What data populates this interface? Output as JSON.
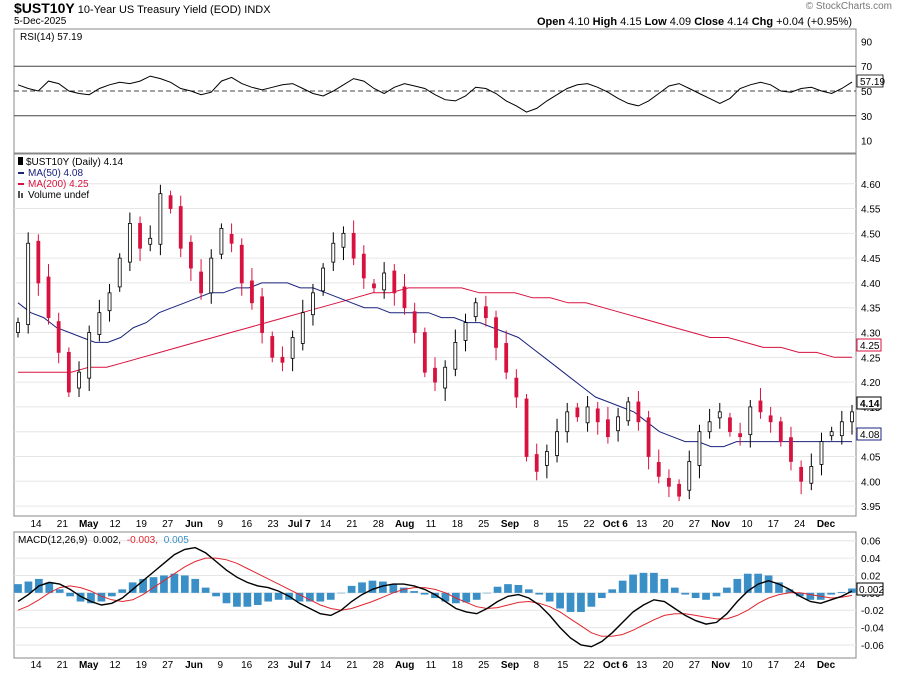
{
  "header": {
    "symbol": "$UST10Y",
    "description": "10-Year US Treasury Yield (EOD)",
    "exchange": "INDX",
    "date": "5-Dec-2025",
    "watermark": "© StockCharts.com",
    "open_label": "Open",
    "open": "4.10",
    "high_label": "High",
    "high": "4.15",
    "low_label": "Low",
    "low": "4.09",
    "close_label": "Close",
    "close": "4.14",
    "chg_label": "Chg",
    "chg": "+0.04 (+0.95%)"
  },
  "rsi_panel": {
    "legend": "RSI(14) 57.19",
    "value_label": "57.19"
  },
  "price_panel": {
    "legend_main": "$UST10Y (Daily) 4.14",
    "legend_ma50": "MA(50) 4.08",
    "legend_ma200": "MA(200) 4.25",
    "legend_volume": "Volume undef",
    "last_close_label": "4.14",
    "ma50_label": "4.08",
    "ma200_label": "4.25"
  },
  "macd_panel": {
    "legend_prefix": "MACD(12,26,9)",
    "legend_macd": "0.002,",
    "legend_signal": "-0.003,",
    "legend_hist": "0.005",
    "value_label": "0.002"
  },
  "colors": {
    "up": "#000000",
    "down": "#d8123f",
    "ma50": "#1a237e",
    "ma200": "#d8123f",
    "macd": "#000000",
    "signal": "#e0262f",
    "histogram": "#3a8fc7",
    "rsi": "#000000"
  },
  "x_axis_labels": [
    {
      "text": "14",
      "bold": false
    },
    {
      "text": "21",
      "bold": false
    },
    {
      "text": "May",
      "bold": true
    },
    {
      "text": "12",
      "bold": false
    },
    {
      "text": "19",
      "bold": false
    },
    {
      "text": "27",
      "bold": false
    },
    {
      "text": "Jun",
      "bold": true
    },
    {
      "text": "9",
      "bold": false
    },
    {
      "text": "16",
      "bold": false
    },
    {
      "text": "23",
      "bold": false
    },
    {
      "text": "Jul 7",
      "bold": true
    },
    {
      "text": "14",
      "bold": false
    },
    {
      "text": "21",
      "bold": false
    },
    {
      "text": "28",
      "bold": false
    },
    {
      "text": "Aug",
      "bold": true
    },
    {
      "text": "11",
      "bold": false
    },
    {
      "text": "18",
      "bold": false
    },
    {
      "text": "25",
      "bold": false
    },
    {
      "text": "Sep",
      "bold": true
    },
    {
      "text": "8",
      "bold": false
    },
    {
      "text": "15",
      "bold": false
    },
    {
      "text": "22",
      "bold": false
    },
    {
      "text": "Oct 6",
      "bold": true
    },
    {
      "text": "13",
      "bold": false
    },
    {
      "text": "20",
      "bold": false
    },
    {
      "text": "27",
      "bold": false
    },
    {
      "text": "Nov",
      "bold": true
    },
    {
      "text": "10",
      "bold": false
    },
    {
      "text": "17",
      "bold": false
    },
    {
      "text": "24",
      "bold": false
    },
    {
      "text": "Dec",
      "bold": true
    }
  ],
  "chart_data": [
    {
      "type": "line",
      "title": "RSI(14)",
      "y_ticks": [
        10,
        30,
        50,
        70,
        90
      ],
      "ylim": [
        0,
        100
      ],
      "reference_lines": [
        30,
        50,
        70
      ],
      "series": [
        {
          "name": "RSI(14)",
          "values": [
            55,
            52,
            50,
            58,
            56,
            50,
            48,
            47,
            52,
            55,
            57,
            56,
            58,
            62,
            60,
            57,
            52,
            50,
            47,
            49,
            58,
            61,
            56,
            53,
            51,
            53,
            55,
            56,
            52,
            48,
            46,
            50,
            55,
            60,
            58,
            52,
            48,
            53,
            56,
            54,
            52,
            47,
            43,
            42,
            46,
            53,
            52,
            48,
            42,
            38,
            33,
            36,
            42,
            47,
            52,
            55,
            56,
            53,
            49,
            44,
            40,
            38,
            42,
            48,
            54,
            56,
            52,
            48,
            44,
            40,
            44,
            52,
            55,
            57,
            55,
            50,
            49,
            52,
            53,
            50,
            48,
            52,
            57.19
          ]
        }
      ]
    },
    {
      "type": "candlestick",
      "title": "$UST10Y (Daily) 4.14",
      "y_ticks": [
        3.95,
        4.0,
        4.05,
        4.1,
        4.15,
        4.2,
        4.25,
        4.3,
        4.35,
        4.4,
        4.45,
        4.5,
        4.55,
        4.6
      ],
      "ylim": [
        3.93,
        4.66
      ],
      "closes": [
        4.32,
        4.48,
        4.4,
        4.33,
        4.26,
        4.18,
        4.22,
        4.3,
        4.34,
        4.38,
        4.45,
        4.52,
        4.47,
        4.49,
        4.58,
        4.55,
        4.47,
        4.43,
        4.38,
        4.45,
        4.51,
        4.48,
        4.4,
        4.36,
        4.3,
        4.25,
        4.24,
        4.29,
        4.34,
        4.38,
        4.43,
        4.48,
        4.5,
        4.45,
        4.41,
        4.39,
        4.42,
        4.38,
        4.35,
        4.3,
        4.22,
        4.2,
        4.23,
        4.28,
        4.32,
        4.36,
        4.33,
        4.27,
        4.22,
        4.17,
        4.05,
        4.02,
        4.06,
        4.1,
        4.14,
        4.13,
        4.15,
        4.12,
        4.09,
        4.13,
        4.16,
        4.12,
        4.05,
        4.01,
        3.99,
        3.97,
        4.04,
        4.1,
        4.12,
        4.14,
        4.1,
        4.09,
        4.15,
        4.14,
        4.12,
        4.08,
        4.04,
        4.0,
        4.03,
        4.08,
        4.1,
        4.12,
        4.14
      ],
      "series": [
        {
          "name": "MA(50)",
          "last": 4.08,
          "values": [
            4.36,
            4.34,
            4.33,
            4.31,
            4.3,
            4.29,
            4.28,
            4.28,
            4.29,
            4.31,
            4.32,
            4.34,
            4.35,
            4.36,
            4.37,
            4.38,
            4.38,
            4.39,
            4.39,
            4.4,
            4.4,
            4.4,
            4.39,
            4.39,
            4.38,
            4.37,
            4.36,
            4.35,
            4.35,
            4.34,
            4.34,
            4.34,
            4.34,
            4.33,
            4.33,
            4.32,
            4.32,
            4.31,
            4.3,
            4.29,
            4.27,
            4.25,
            4.23,
            4.21,
            4.19,
            4.17,
            4.16,
            4.15,
            4.14,
            4.12,
            4.1,
            4.09,
            4.08,
            4.08,
            4.07,
            4.07,
            4.08,
            4.08,
            4.08,
            4.08,
            4.08,
            4.08,
            4.08,
            4.08,
            4.08,
            4.08
          ]
        },
        {
          "name": "MA(200)",
          "last": 4.25,
          "values": [
            4.22,
            4.22,
            4.22,
            4.22,
            4.23,
            4.23,
            4.24,
            4.25,
            4.26,
            4.27,
            4.28,
            4.29,
            4.3,
            4.31,
            4.32,
            4.33,
            4.34,
            4.35,
            4.36,
            4.37,
            4.38,
            4.38,
            4.39,
            4.39,
            4.39,
            4.39,
            4.38,
            4.38,
            4.38,
            4.37,
            4.37,
            4.36,
            4.36,
            4.35,
            4.34,
            4.33,
            4.32,
            4.31,
            4.3,
            4.29,
            4.29,
            4.28,
            4.27,
            4.27,
            4.26,
            4.26,
            4.25,
            4.25
          ]
        }
      ],
      "last_close": 4.14
    },
    {
      "type": "line",
      "title": "MACD(12,26,9)",
      "y_ticks": [
        -0.06,
        -0.04,
        -0.02,
        0.0,
        0.02,
        0.04,
        0.06
      ],
      "ylim": [
        -0.075,
        0.07
      ],
      "series": [
        {
          "name": "MACD",
          "values": [
            -0.01,
            -0.002,
            0.008,
            0.012,
            0.01,
            0.004,
            -0.004,
            -0.01,
            -0.014,
            -0.012,
            -0.006,
            0.004,
            0.014,
            0.024,
            0.034,
            0.044,
            0.05,
            0.052,
            0.046,
            0.036,
            0.026,
            0.018,
            0.012,
            0.008,
            0.006,
            0.002,
            -0.004,
            -0.012,
            -0.018,
            -0.024,
            -0.026,
            -0.02,
            -0.01,
            -0.002,
            0.004,
            0.008,
            0.01,
            0.01,
            0.008,
            0.004,
            -0.002,
            -0.01,
            -0.018,
            -0.022,
            -0.024,
            -0.018,
            -0.01,
            -0.004,
            -0.002,
            -0.006,
            -0.014,
            -0.026,
            -0.04,
            -0.052,
            -0.06,
            -0.062,
            -0.056,
            -0.046,
            -0.034,
            -0.022,
            -0.014,
            -0.008,
            -0.01,
            -0.018,
            -0.026,
            -0.032,
            -0.036,
            -0.034,
            -0.024,
            -0.01,
            0.002,
            0.01,
            0.014,
            0.01,
            0.004,
            -0.004,
            -0.01,
            -0.012,
            -0.008,
            -0.004,
            0.002
          ]
        },
        {
          "name": "Signal",
          "values": [
            -0.02,
            -0.015,
            -0.008,
            0.0,
            0.006,
            0.008,
            0.006,
            0.002,
            -0.004,
            -0.008,
            -0.01,
            -0.008,
            -0.002,
            0.006,
            0.014,
            0.022,
            0.03,
            0.036,
            0.04,
            0.04,
            0.038,
            0.034,
            0.028,
            0.022,
            0.016,
            0.01,
            0.004,
            -0.002,
            -0.008,
            -0.014,
            -0.018,
            -0.02,
            -0.018,
            -0.014,
            -0.01,
            -0.005,
            0.0,
            0.004,
            0.006,
            0.006,
            0.004,
            0.0,
            -0.006,
            -0.011,
            -0.016,
            -0.018,
            -0.017,
            -0.014,
            -0.011,
            -0.01,
            -0.012,
            -0.016,
            -0.022,
            -0.03,
            -0.038,
            -0.046,
            -0.05,
            -0.05,
            -0.048,
            -0.043,
            -0.037,
            -0.031,
            -0.026,
            -0.024,
            -0.024,
            -0.026,
            -0.028,
            -0.03,
            -0.03,
            -0.026,
            -0.02,
            -0.012,
            -0.006,
            -0.002,
            0.0,
            0.0,
            -0.002,
            -0.004,
            -0.006,
            -0.005,
            -0.003
          ]
        },
        {
          "name": "Histogram",
          "values": []
        }
      ]
    }
  ]
}
